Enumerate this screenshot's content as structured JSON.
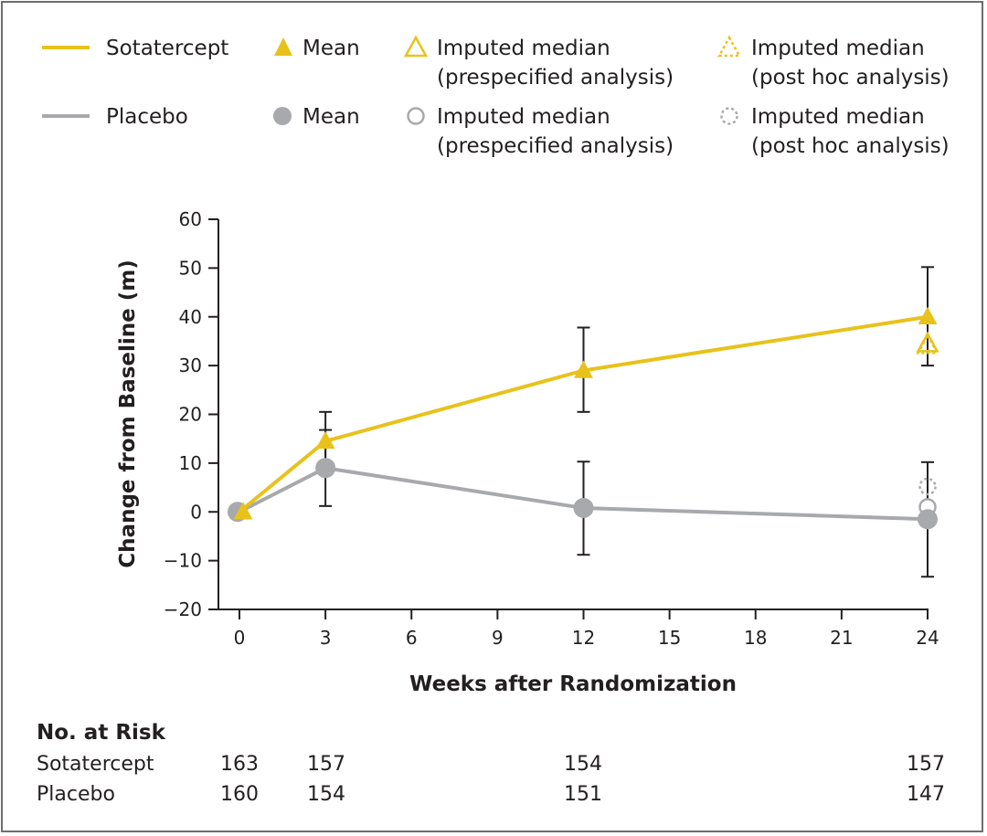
{
  "legend": {
    "sotatercept": {
      "name": "Sotatercept",
      "mean": "Mean",
      "pre_1": "Imputed median",
      "pre_2": "(prespecified analysis)",
      "post_1": "Imputed median",
      "post_2": "(post hoc analysis)"
    },
    "placebo": {
      "name": "Placebo",
      "mean": "Mean",
      "pre_1": "Imputed median",
      "pre_2": "(prespecified analysis)",
      "post_1": "Imputed median",
      "post_2": "(post hoc analysis)"
    }
  },
  "chart_data": {
    "type": "line",
    "xlabel": "Weeks after Randomization",
    "ylabel": "Change from Baseline (m)",
    "xlim": [
      0,
      24
    ],
    "ylim": [
      -20,
      60
    ],
    "xticks": [
      0,
      3,
      6,
      9,
      12,
      15,
      18,
      21,
      24
    ],
    "yticks": [
      -20,
      -10,
      0,
      10,
      20,
      30,
      40,
      50,
      60
    ],
    "ytick_labels": [
      "−20",
      "−10",
      "0",
      "10",
      "20",
      "30",
      "40",
      "50",
      "60"
    ],
    "colors": {
      "sotatercept": "#e8c21b",
      "placebo": "#a7a9ac",
      "errorbar": "#231f20"
    },
    "series": [
      {
        "key": "sotatercept",
        "name": "Sotatercept",
        "marker": "triangle",
        "x": [
          0,
          3,
          12,
          24
        ],
        "y": [
          0,
          14.5,
          29,
          40
        ],
        "err_low": [
          null,
          8,
          20.5,
          30
        ],
        "err_high": [
          null,
          20.5,
          37.8,
          50.2
        ],
        "imputed_prespecified": {
          "x": 24,
          "y": 34.5
        },
        "imputed_post_hoc": {
          "x": 24,
          "y": 34.5
        }
      },
      {
        "key": "placebo",
        "name": "Placebo",
        "marker": "circle",
        "x": [
          0,
          3,
          12,
          24
        ],
        "y": [
          0,
          9,
          0.8,
          -1.5
        ],
        "err_low": [
          null,
          1.2,
          -8.8,
          -13.3
        ],
        "err_high": [
          null,
          16.8,
          10.3,
          10.2
        ],
        "imputed_prespecified": {
          "x": 24,
          "y": 1
        },
        "imputed_post_hoc": {
          "x": 24,
          "y": 5.2
        }
      }
    ],
    "at_risk": {
      "title": "No. at Risk",
      "weeks": [
        0,
        3,
        12,
        24
      ],
      "rows": [
        {
          "name": "Sotatercept",
          "values": [
            "163",
            "157",
            "154",
            "157"
          ]
        },
        {
          "name": "Placebo",
          "values": [
            "160",
            "154",
            "151",
            "147"
          ]
        }
      ]
    }
  }
}
